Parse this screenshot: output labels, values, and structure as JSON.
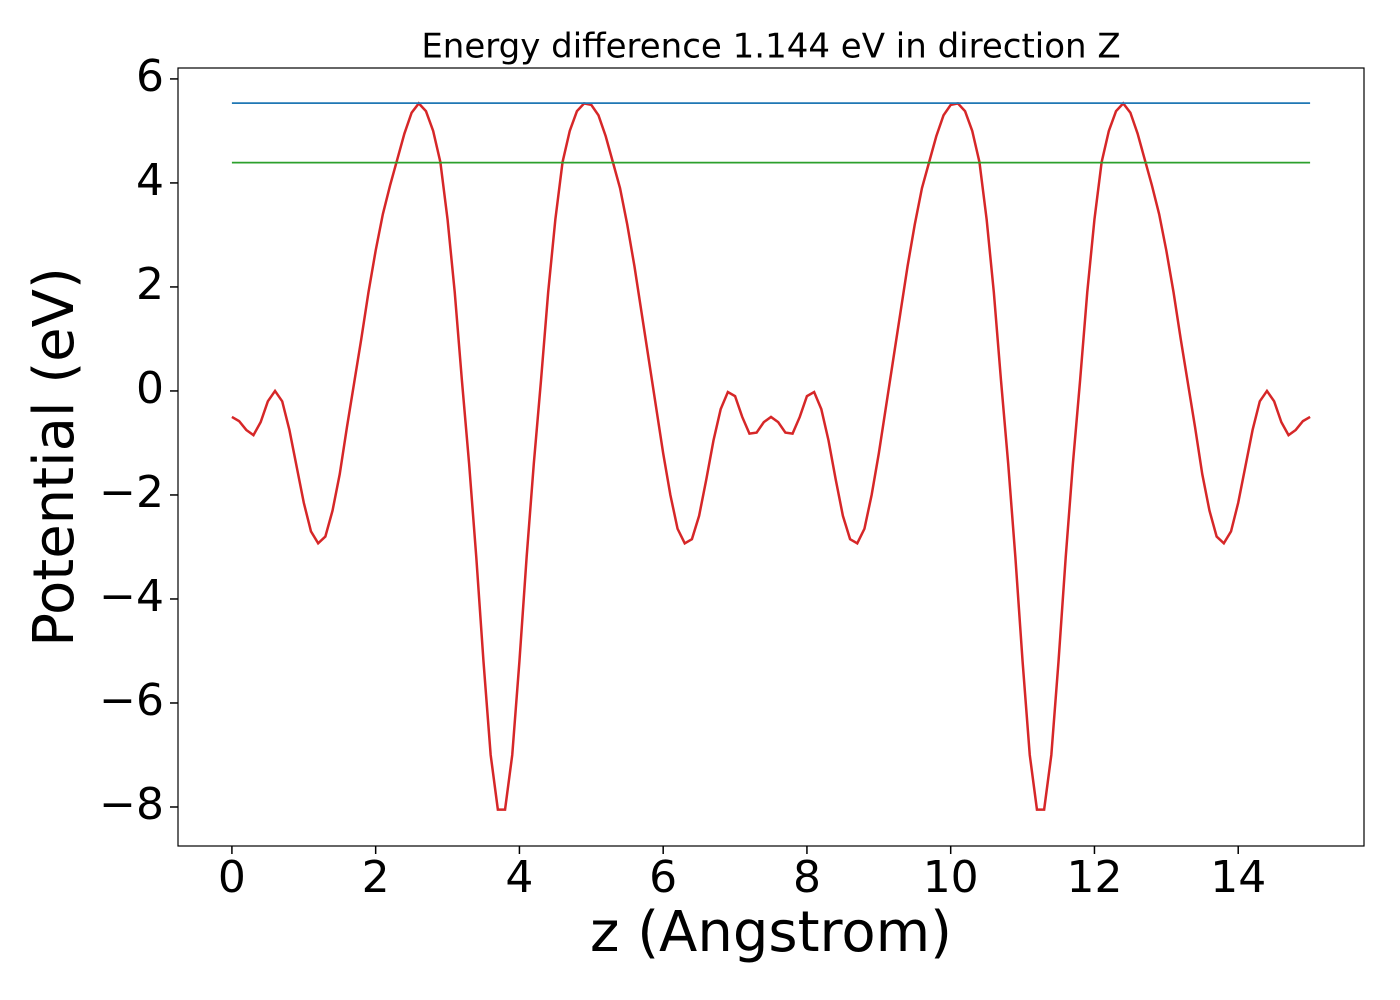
{
  "chart_data": {
    "type": "line",
    "title": "Energy difference 1.144 eV in direction Z",
    "xlabel": "z (Angstrom)",
    "ylabel": "Potential (eV)",
    "xlim": [
      -0.75,
      15.75
    ],
    "ylim": [
      -8.75,
      6.21
    ],
    "xticks": [
      0,
      2,
      4,
      6,
      8,
      10,
      12,
      14
    ],
    "yticks": [
      {
        "value": -8,
        "label": "−8"
      },
      {
        "value": -6,
        "label": "−6"
      },
      {
        "value": -4,
        "label": "−4"
      },
      {
        "value": -2,
        "label": "−2"
      },
      0,
      2,
      4,
      6
    ],
    "series": [
      {
        "color": "#d62728",
        "x": [
          0,
          0.1,
          0.2,
          0.3,
          0.4,
          0.5,
          0.6,
          0.7,
          0.8,
          0.9,
          1,
          1.1,
          1.2,
          1.3,
          1.4,
          1.5,
          1.6,
          1.7,
          1.8,
          1.9,
          2,
          2.1,
          2.2,
          2.3,
          2.4,
          2.5,
          2.6,
          2.7,
          2.8,
          2.9,
          3,
          3.1,
          3.2,
          3.3,
          3.4,
          3.5,
          3.6,
          3.7,
          3.8,
          3.9,
          4,
          4.1,
          4.2,
          4.3,
          4.4,
          4.5,
          4.6,
          4.7,
          4.8,
          4.9,
          5,
          5.1,
          5.2,
          5.3,
          5.4,
          5.5,
          5.6,
          5.7,
          5.8,
          5.9,
          6,
          6.1,
          6.2,
          6.3,
          6.4,
          6.5,
          6.6,
          6.7,
          6.8,
          6.9,
          7,
          7.1,
          7.2,
          7.3,
          7.4,
          7.5,
          7.6,
          7.7,
          7.8,
          7.9,
          8,
          8.1,
          8.2,
          8.3,
          8.4,
          8.5,
          8.6,
          8.7,
          8.8,
          8.9,
          9,
          9.1,
          9.2,
          9.3,
          9.4,
          9.5,
          9.6,
          9.7,
          9.8,
          9.9,
          10,
          10.1,
          10.2,
          10.3,
          10.4,
          10.5,
          10.6,
          10.7,
          10.8,
          10.9,
          11,
          11.1,
          11.2,
          11.3,
          11.4,
          11.5,
          11.6,
          11.7,
          11.8,
          11.9,
          12,
          12.1,
          12.2,
          12.3,
          12.4,
          12.5,
          12.6,
          12.7,
          12.8,
          12.9,
          13,
          13.1,
          13.2,
          13.3,
          13.4,
          13.5,
          13.6,
          13.7,
          13.8,
          13.9,
          14,
          14.1,
          14.2,
          14.3,
          14.4,
          14.5,
          14.6,
          14.7,
          14.8,
          14.9,
          15
        ],
        "values": [
          -0.5,
          -0.58,
          -0.75,
          -0.85,
          -0.6,
          -0.2,
          0,
          -0.2,
          -0.75,
          -1.45,
          -2.15,
          -2.7,
          -2.93,
          -2.8,
          -2.3,
          -1.6,
          -0.7,
          0.15,
          1,
          1.9,
          2.7,
          3.4,
          3.95,
          4.45,
          4.95,
          5.35,
          5.53,
          5.38,
          5,
          4.4,
          3.3,
          1.9,
          0.2,
          -1.4,
          -3.2,
          -5.2,
          -7,
          -8.05,
          -8.05,
          -7,
          -5.2,
          -3.2,
          -1.4,
          0.2,
          1.9,
          3.3,
          4.4,
          5,
          5.38,
          5.53,
          5.5,
          5.3,
          4.9,
          4.4,
          3.9,
          3.2,
          2.4,
          1.5,
          0.6,
          -0.3,
          -1.2,
          -2,
          -2.65,
          -2.93,
          -2.85,
          -2.4,
          -1.7,
          -0.95,
          -0.35,
          -0.02,
          -0.1,
          -0.5,
          -0.82,
          -0.8,
          -0.6,
          -0.5,
          -0.6,
          -0.8,
          -0.82,
          -0.5,
          -0.1,
          -0.02,
          -0.35,
          -0.95,
          -1.7,
          -2.4,
          -2.85,
          -2.93,
          -2.65,
          -2,
          -1.2,
          -0.3,
          0.6,
          1.5,
          2.4,
          3.2,
          3.9,
          4.4,
          4.9,
          5.3,
          5.5,
          5.53,
          5.38,
          5,
          4.4,
          3.3,
          1.9,
          0.2,
          -1.4,
          -3.2,
          -5.2,
          -7,
          -8.05,
          -8.05,
          -7,
          -5.2,
          -3.2,
          -1.4,
          0.2,
          1.9,
          3.3,
          4.4,
          5,
          5.38,
          5.53,
          5.35,
          4.95,
          4.45,
          3.95,
          3.4,
          2.7,
          1.9,
          1,
          0.15,
          -0.7,
          -1.6,
          -2.3,
          -2.8,
          -2.93,
          -2.7,
          -2.15,
          -1.45,
          -0.75,
          -0.2,
          0,
          -0.2,
          -0.6,
          -0.85,
          -0.75,
          -0.58,
          -0.5
        ]
      },
      {
        "color": "#1f77b4",
        "x": [
          0,
          15
        ],
        "values": [
          5.534,
          5.534
        ]
      },
      {
        "color": "#2ca02c",
        "x": [
          0,
          15
        ],
        "values": [
          4.39,
          4.39
        ]
      }
    ]
  }
}
